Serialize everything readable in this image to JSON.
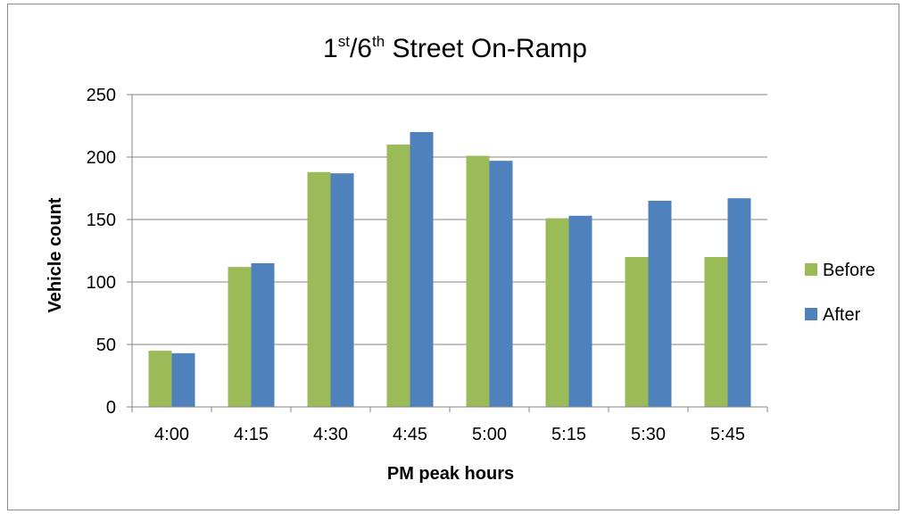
{
  "chart_data": {
    "type": "bar",
    "title": {
      "part1": "1",
      "sup1": "st",
      "part2": "/6",
      "sup2": "th",
      "part3": " Street On-Ramp"
    },
    "xlabel": "PM peak hours",
    "ylabel": "Vehicle count",
    "categories": [
      "4:00",
      "4:15",
      "4:30",
      "4:45",
      "5:00",
      "5:15",
      "5:30",
      "5:45"
    ],
    "series": [
      {
        "name": "Before",
        "color": "#9bbb59",
        "values": [
          45,
          112,
          188,
          210,
          201,
          151,
          120,
          120
        ]
      },
      {
        "name": "After",
        "color": "#4f81bd",
        "values": [
          43,
          115,
          187,
          220,
          197,
          153,
          165,
          167
        ]
      }
    ],
    "ylim": [
      0,
      250
    ],
    "yticks": [
      0,
      50,
      100,
      150,
      200,
      250
    ],
    "grid": true,
    "legend_position": "right"
  }
}
